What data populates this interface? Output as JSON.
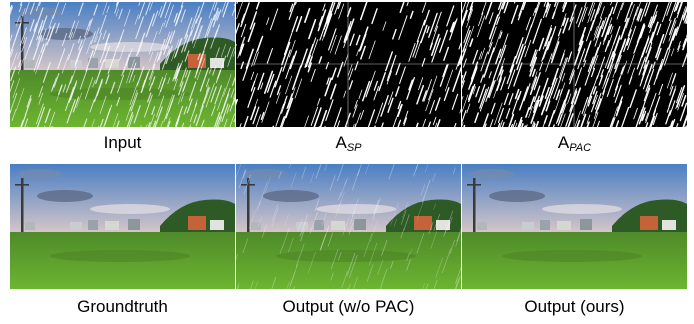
{
  "figure": {
    "row1": [
      {
        "kind": "photo-rain",
        "label": "Input",
        "sub": ""
      },
      {
        "kind": "mask-sparse",
        "label": "A",
        "sub": "SP"
      },
      {
        "kind": "mask-dense",
        "label": "A",
        "sub": "PAC"
      }
    ],
    "row2": [
      {
        "kind": "photo-clean",
        "label": "Groundtruth",
        "sub": ""
      },
      {
        "kind": "photo-light-rain",
        "label": "Output (w/o PAC)",
        "sub": ""
      },
      {
        "kind": "photo-clean",
        "label": "Output (ours)",
        "sub": ""
      }
    ]
  },
  "colors": {
    "sky_top": "#4a7fc4",
    "sky_bottom": "#d8c7c8",
    "field": "#5fa32a",
    "trees": "#2e5a26",
    "mask_bg": "#000000",
    "streak": "#ffffff"
  }
}
